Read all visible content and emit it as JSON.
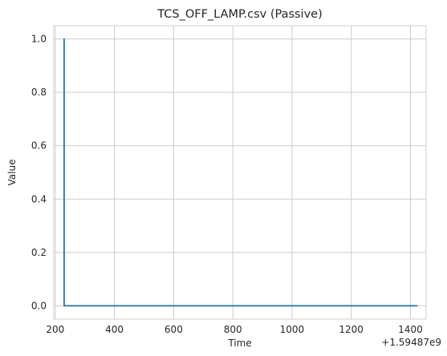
{
  "chart_data": {
    "type": "line",
    "title": "TCS_OFF_LAMP.csv (Passive)",
    "xlabel": "Time",
    "ylabel": "Value",
    "x_offset_label": "+1.59487e9",
    "xlim": [
      195,
      1453
    ],
    "ylim": [
      -0.05,
      1.05
    ],
    "xticks": [
      200,
      400,
      600,
      800,
      1000,
      1200,
      1400
    ],
    "yticks": [
      0.0,
      0.2,
      0.4,
      0.6,
      0.8,
      1.0
    ],
    "xtick_labels": [
      "200",
      "400",
      "600",
      "800",
      "1000",
      "1200",
      "1400"
    ],
    "ytick_labels": [
      "0.0",
      "0.2",
      "0.4",
      "0.6",
      "0.8",
      "1.0"
    ],
    "grid": true,
    "series": [
      {
        "color": "#1f77b4",
        "drawstyle": "steps-post",
        "x": [
          228,
          230,
          1424
        ],
        "y": [
          1,
          0,
          0
        ]
      }
    ]
  }
}
